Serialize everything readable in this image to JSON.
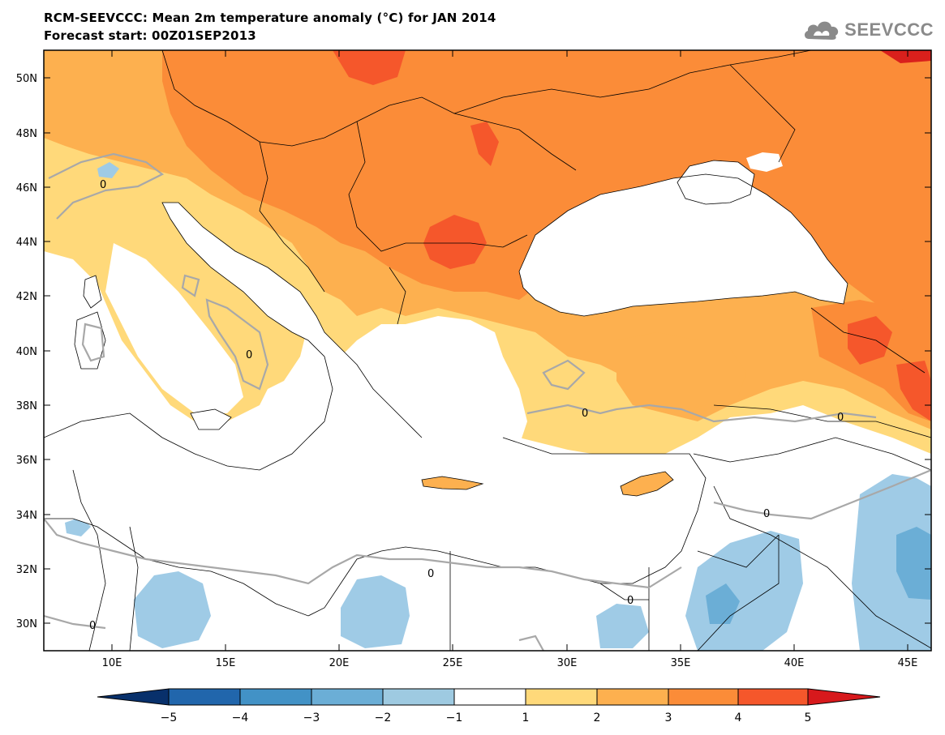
{
  "header": {
    "title": "RCM-SEEVCCC: Mean 2m temperature anomaly (°C) for JAN 2014",
    "subtitle": "Forecast start: 00Z01SEP2013",
    "logo_text": "SEEVCCC"
  },
  "map": {
    "variable": "Mean 2m temperature anomaly",
    "unit": "°C",
    "lon_range": [
      7,
      46
    ],
    "lat_range": [
      29,
      51
    ],
    "lat_labels": [
      "50N",
      "48N",
      "46N",
      "44N",
      "42N",
      "40N",
      "38N",
      "36N",
      "34N",
      "32N",
      "30N"
    ],
    "lon_labels": [
      "10E",
      "15E",
      "20E",
      "25E",
      "30E",
      "35E",
      "40E",
      "45E"
    ],
    "contour_label": "0",
    "colors": {
      "sea_and_neutral": "#ffffff",
      "anomaly_1_2": "#ffd97a",
      "anomaly_2_3": "#fdb04f",
      "anomaly_3_4": "#fb8c38",
      "anomaly_4_5": "#f5572b",
      "anomaly_above_5": "#d9201c",
      "anomaly_m1_m2": "#9fcbe6",
      "anomaly_m2_m3": "#6baed6",
      "anomaly_m3_m4": "#4292c6",
      "zero_contour": "#a8a8a8",
      "borders": "#000000"
    }
  },
  "colorbar": {
    "ticks": [
      "−5",
      "−4",
      "−3",
      "−2",
      "−1",
      "1",
      "2",
      "3",
      "4",
      "5"
    ],
    "colors": [
      "#08306b",
      "#2166ac",
      "#4292c6",
      "#6baed6",
      "#9ecae1",
      "#ffffff",
      "#ffd97a",
      "#fdb04f",
      "#fb8c38",
      "#f5572b",
      "#d7191c"
    ]
  }
}
